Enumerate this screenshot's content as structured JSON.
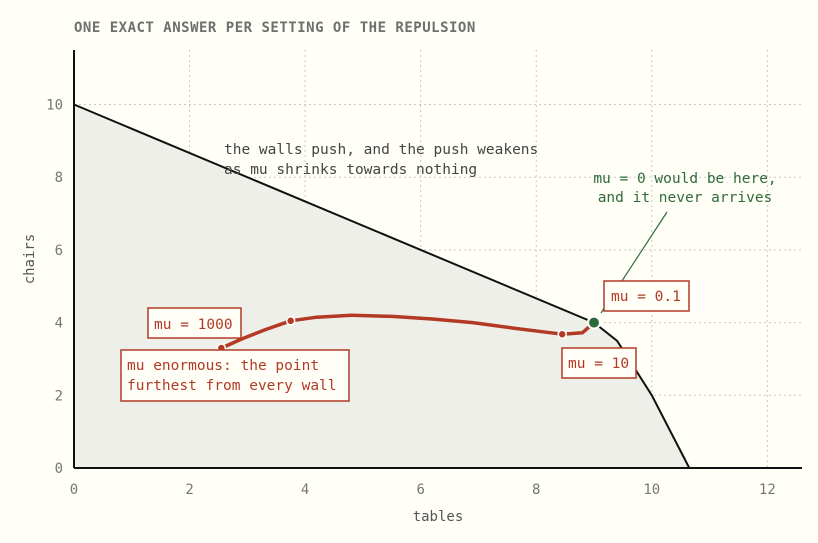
{
  "chart_data": {
    "type": "line",
    "title": "ONE EXACT ANSWER PER SETTING OF THE REPULSION",
    "xlabel": "tables",
    "ylabel": "chairs",
    "xlim": [
      0,
      12.6
    ],
    "ylim": [
      0,
      11.5
    ],
    "x_ticks": [
      "0",
      "2",
      "4",
      "6",
      "8",
      "10",
      "12"
    ],
    "y_ticks": [
      "0",
      "2",
      "4",
      "6",
      "8",
      "10"
    ],
    "grid": true,
    "feasible_region": [
      [
        0,
        10
      ],
      [
        9,
        4
      ],
      [
        9.4,
        3.5
      ],
      [
        10,
        2
      ],
      [
        10.65,
        0
      ],
      [
        0,
        0
      ]
    ],
    "path": [
      [
        2.55,
        3.3
      ],
      [
        2.9,
        3.55
      ],
      [
        3.3,
        3.8
      ],
      [
        3.75,
        4.05
      ],
      [
        4.2,
        4.15
      ],
      [
        4.8,
        4.2
      ],
      [
        5.5,
        4.17
      ],
      [
        6.2,
        4.1
      ],
      [
        6.9,
        4.0
      ],
      [
        7.6,
        3.85
      ],
      [
        8.1,
        3.75
      ],
      [
        8.45,
        3.68
      ],
      [
        8.8,
        3.72
      ],
      [
        9.0,
        4.0
      ]
    ],
    "points": [
      {
        "mu": "1000",
        "x": 2.55,
        "y": 3.3
      },
      {
        "mu": "10",
        "x": 8.45,
        "y": 3.68
      },
      {
        "mu": "0.1",
        "x": 9.0,
        "y": 4.0
      },
      {
        "mu": "mid",
        "x": 3.75,
        "y": 4.05
      }
    ],
    "labels": {
      "mu_1000": "mu = 1000",
      "mu_10": "mu = 10",
      "mu_0_1": "mu = 0.1"
    },
    "annotations": {
      "walls_line1": "the walls push, and the push weakens",
      "walls_line2": "as mu shrinks towards nothing",
      "zero_line1": "mu = 0 would be here,",
      "zero_line2": "and it never arrives",
      "enormous_line1": "mu enormous: the point",
      "enormous_line2": "furthest from every wall"
    },
    "colors": {
      "path": "#b23a25",
      "optimum": "#2f6b3a",
      "region": "#efefea",
      "boundary": "#111111"
    }
  }
}
